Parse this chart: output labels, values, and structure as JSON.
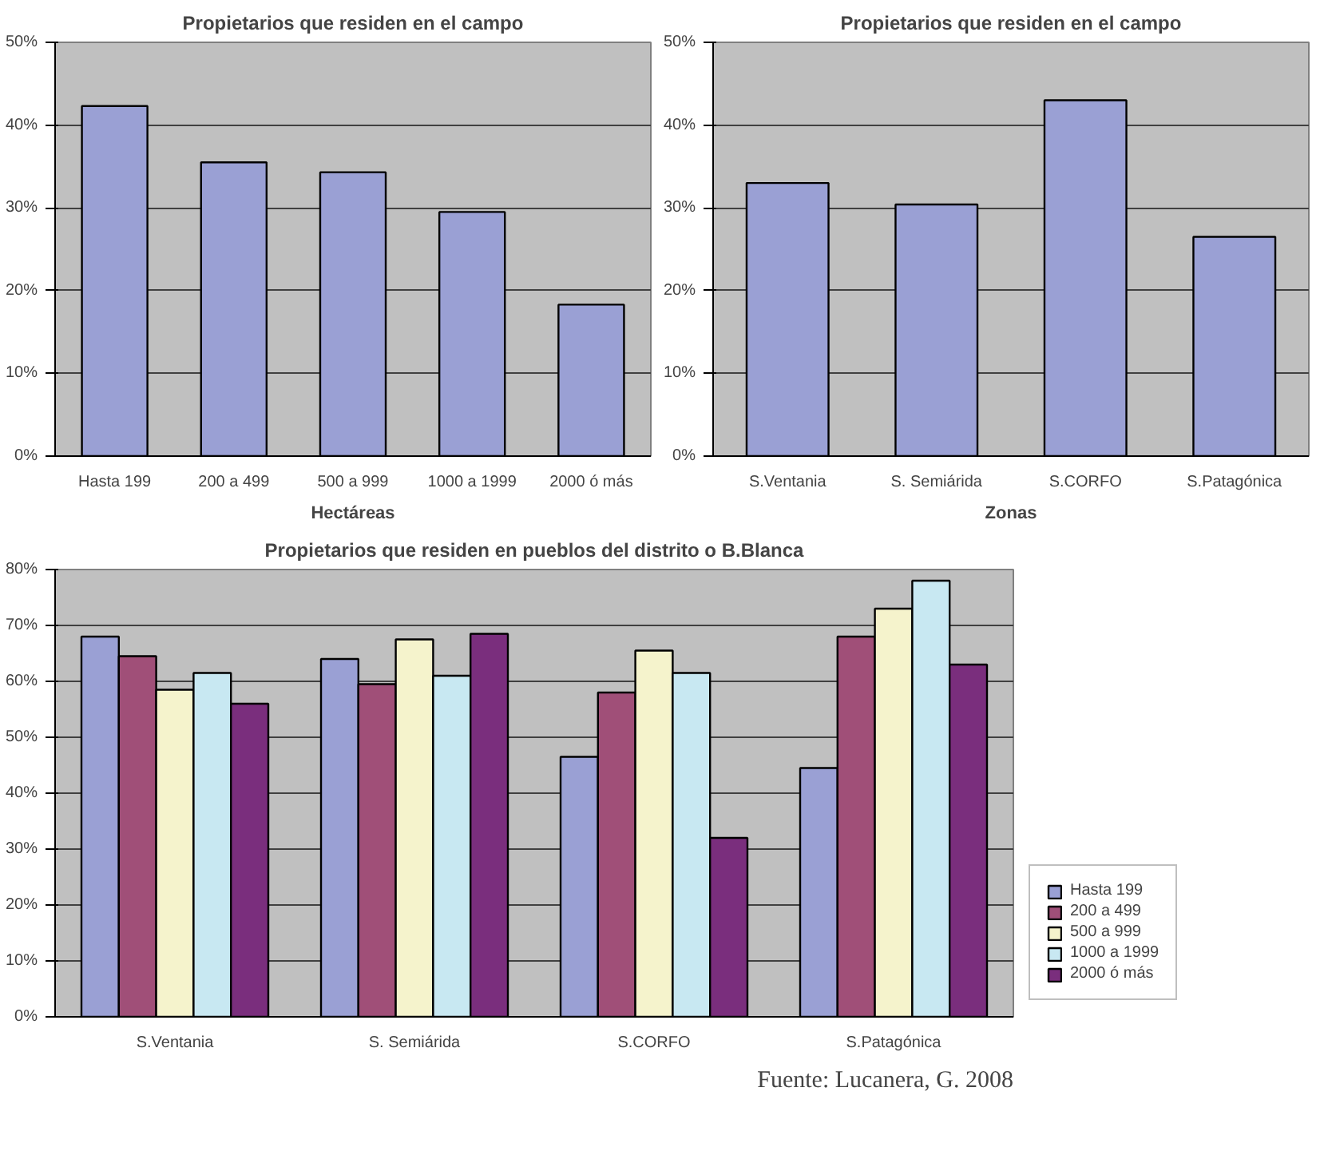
{
  "chart_data": [
    {
      "type": "bar",
      "title": "Propietarios que residen en el campo",
      "xlabel": "Hectáreas",
      "categories": [
        "Hasta 199",
        "200 a 499",
        "500 a 999",
        "1000 a 1999",
        "2000 ó más"
      ],
      "values": [
        42.3,
        35.5,
        34.3,
        29.5,
        18.3
      ],
      "color": "#9aa0d4",
      "ylim": [
        0,
        50
      ],
      "yticks": [
        {
          "value": 0,
          "label": "0%"
        },
        {
          "value": 10,
          "label": "10%"
        },
        {
          "value": 20,
          "label": "20%"
        },
        {
          "value": 30,
          "label": "30%"
        },
        {
          "value": 40,
          "label": "40%"
        },
        {
          "value": 50,
          "label": "50%"
        }
      ],
      "grid": "y",
      "legend": false
    },
    {
      "type": "bar",
      "title": "Propietarios que residen en el campo",
      "xlabel": "Zonas",
      "categories": [
        "S.Ventania",
        "S. Semiárida",
        "S.CORFO",
        "S.Patagónica"
      ],
      "values": [
        33,
        30.4,
        43,
        26.5
      ],
      "color": "#9aa0d4",
      "ylim": [
        0,
        50
      ],
      "yticks": [
        {
          "value": 0,
          "label": "0%"
        },
        {
          "value": 10,
          "label": "10%"
        },
        {
          "value": 20,
          "label": "20%"
        },
        {
          "value": 30,
          "label": "30%"
        },
        {
          "value": 40,
          "label": "40%"
        },
        {
          "value": 50,
          "label": "50%"
        }
      ],
      "grid": "y",
      "legend": false
    },
    {
      "type": "bar",
      "title": "Propietarios que residen en pueblos del distrito o B.Blanca",
      "categories": [
        "S.Ventania",
        "S. Semiárida",
        "S.CORFO",
        "S.Patagónica"
      ],
      "series": [
        {
          "name": "Hasta 199",
          "color": "#9aa0d4",
          "values": [
            68,
            64,
            46.5,
            44.5
          ]
        },
        {
          "name": "200 a 499",
          "color": "#a04f78",
          "values": [
            64.5,
            59.5,
            58,
            68
          ]
        },
        {
          "name": "500 a 999",
          "color": "#f5f3cc",
          "values": [
            58.5,
            67.5,
            65.5,
            73
          ]
        },
        {
          "name": "1000 a 1999",
          "color": "#c8e8f2",
          "values": [
            61.5,
            61,
            61.5,
            78
          ]
        },
        {
          "name": "2000 ó más",
          "color": "#7a2e7d",
          "values": [
            56,
            68.5,
            32,
            63
          ]
        }
      ],
      "ylim": [
        0,
        80
      ],
      "yticks": [
        {
          "value": 0,
          "label": "0%"
        },
        {
          "value": 10,
          "label": "10%"
        },
        {
          "value": 20,
          "label": "20%"
        },
        {
          "value": 30,
          "label": "30%"
        },
        {
          "value": 40,
          "label": "40%"
        },
        {
          "value": 50,
          "label": "50%"
        },
        {
          "value": 60,
          "label": "60%"
        },
        {
          "value": 70,
          "label": "70%"
        },
        {
          "value": 80,
          "label": "80%"
        }
      ],
      "grid": "y",
      "legend": "right",
      "annotations": [
        "Fuente: Lucanera, G. 2008"
      ]
    }
  ]
}
